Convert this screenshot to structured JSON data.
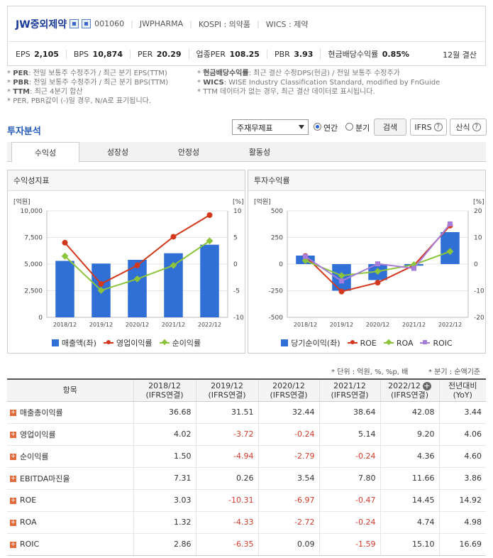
{
  "company": {
    "name": "JW중외제약",
    "code": "001060",
    "eng": "JWPHARMA",
    "market": "KOSPI : 의약품",
    "wics": "WICS : 제약",
    "settlement": "12월 결산"
  },
  "metrics": [
    {
      "label": "EPS",
      "value": "2,105"
    },
    {
      "label": "BPS",
      "value": "10,874"
    },
    {
      "label": "PER",
      "value": "20.29"
    },
    {
      "label": "업종PER",
      "value": "108.25"
    },
    {
      "label": "PBR",
      "value": "3.93"
    },
    {
      "label": "현금배당수익률",
      "value": "0.85%"
    }
  ],
  "notes": {
    "left": [
      {
        "key": "PER",
        "text": ": 전일 보통주 수정주가 / 최근 분기 EPS(TTM)"
      },
      {
        "key": "PBR",
        "text": ": 전일 보통주 수정주가 / 최근 분기 BPS(TTM)"
      },
      {
        "key": "TTM",
        "text": ": 최근 4분기 합산"
      },
      {
        "key": "",
        "text": "PER, PBR값이 (-)일 경우, N/A로 표기됩니다."
      }
    ],
    "right": [
      {
        "key": "현금배당수익률",
        "text": ": 최근 결산 수정DPS(현금) / 전일 보통주 수정주가"
      },
      {
        "key": "WICS",
        "text": ": WISE Industry Classification Standard, modified by FnGuide"
      },
      {
        "key": "",
        "text": "TTM 데이터가 없는 경우, 최근 결산 데이터로 표시됩니다."
      }
    ]
  },
  "section_title": "투자분석",
  "controls": {
    "select_value": "주재무제표",
    "radio_annual": "연간",
    "radio_quarter": "분기",
    "search_button": "검색",
    "ifrs_button": "IFRS",
    "formula_button": "산식"
  },
  "tabs": [
    "수익성",
    "성장성",
    "안정성",
    "활동성"
  ],
  "panels": {
    "left_title": "수익성지표",
    "right_title": "투자수익률"
  },
  "units_text": "* 단위 : 억원, %, %p, 배",
  "period_text": "* 분기 : 순액기준",
  "table": {
    "item_header": "항목",
    "columns": [
      {
        "top": "2018/12",
        "bottom": "(IFRS연결)"
      },
      {
        "top": "2019/12",
        "bottom": "(IFRS연결)"
      },
      {
        "top": "2020/12",
        "bottom": "(IFRS연결)"
      },
      {
        "top": "2021/12",
        "bottom": "(IFRS연결)"
      },
      {
        "top": "2022/12",
        "bottom": "(IFRS연결)"
      },
      {
        "top": "전년대비",
        "bottom": "(YoY)"
      }
    ],
    "rows": [
      {
        "label": "매출총이익률",
        "values": [
          "36.68",
          "31.51",
          "32.44",
          "38.64",
          "42.08",
          "3.44"
        ]
      },
      {
        "label": "영업이익률",
        "values": [
          "4.02",
          "-3.72",
          "-0.24",
          "5.14",
          "9.20",
          "4.06"
        ]
      },
      {
        "label": "순이익률",
        "values": [
          "1.50",
          "-4.94",
          "-2.79",
          "-0.24",
          "4.36",
          "4.60"
        ]
      },
      {
        "label": "EBITDA마진율",
        "values": [
          "7.31",
          "0.26",
          "3.54",
          "7.80",
          "11.66",
          "3.86"
        ]
      },
      {
        "label": "ROE",
        "values": [
          "3.03",
          "-10.31",
          "-6.97",
          "-0.47",
          "14.45",
          "14.92"
        ]
      },
      {
        "label": "ROA",
        "values": [
          "1.32",
          "-4.33",
          "-2.72",
          "-0.24",
          "4.74",
          "4.98"
        ]
      },
      {
        "label": "ROIC",
        "values": [
          "2.86",
          "-6.35",
          "0.09",
          "-1.59",
          "15.10",
          "16.69"
        ]
      }
    ]
  },
  "chart_data": [
    {
      "type": "bar",
      "title": "수익성지표",
      "categories": [
        "2018/12",
        "2019/12",
        "2020/12",
        "2021/12",
        "2022/12"
      ],
      "left_unit": "[억원]",
      "right_unit": "[%]",
      "left_ylim": [
        0,
        10000
      ],
      "left_ticks": [
        "10,000",
        "7,500",
        "5,000",
        "2,500",
        "0"
      ],
      "right_ylim": [
        -10,
        10
      ],
      "right_ticks": [
        "10",
        "5",
        "0",
        "-5",
        "-10"
      ],
      "series": [
        {
          "name": "매출액(좌)",
          "kind": "bar",
          "axis": "left",
          "color": "#2f6fd6",
          "values": [
            5300,
            5050,
            5400,
            6020,
            6820
          ]
        },
        {
          "name": "영업이익률",
          "kind": "line",
          "axis": "right",
          "color": "#d2381c",
          "values": [
            4.02,
            -3.72,
            -0.24,
            5.14,
            9.2
          ]
        },
        {
          "name": "순이익률",
          "kind": "line",
          "axis": "right",
          "color": "#8cc43c",
          "values": [
            1.5,
            -4.94,
            -2.79,
            -0.24,
            4.36
          ]
        }
      ]
    },
    {
      "type": "bar",
      "title": "투자수익률",
      "categories": [
        "2018/12",
        "2019/12",
        "2020/12",
        "2021/12",
        "2022/12"
      ],
      "left_unit": "[억원]",
      "right_unit": "[%]",
      "left_ylim": [
        -500,
        500
      ],
      "left_ticks": [
        "500",
        "250",
        "0",
        "-250",
        "-500"
      ],
      "right_ylim": [
        -20,
        20
      ],
      "right_ticks": [
        "20",
        "10",
        "0",
        "-10",
        "-20"
      ],
      "series": [
        {
          "name": "당기순이익(좌)",
          "kind": "bar",
          "axis": "left",
          "color": "#2f6fd6",
          "values": [
            80,
            -250,
            -150,
            -15,
            300
          ]
        },
        {
          "name": "ROE",
          "kind": "line",
          "axis": "right",
          "color": "#d2381c",
          "values": [
            3.03,
            -10.31,
            -6.97,
            -0.47,
            14.45
          ]
        },
        {
          "name": "ROA",
          "kind": "line",
          "axis": "right",
          "color": "#8cc43c",
          "values": [
            1.32,
            -4.33,
            -2.72,
            -0.24,
            4.74
          ]
        },
        {
          "name": "ROIC",
          "kind": "line",
          "axis": "right",
          "color": "#a77ddb",
          "values": [
            2.86,
            -6.35,
            0.09,
            -1.59,
            15.1
          ]
        }
      ]
    }
  ]
}
